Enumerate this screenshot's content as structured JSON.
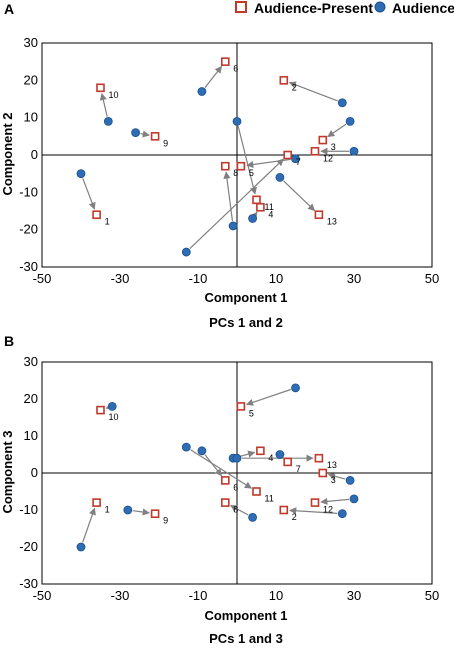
{
  "legend": {
    "present_label": "Audience-Present",
    "absent_label": "Audience-Absent",
    "present_color": "#c0392b",
    "absent_color": "#2e6db4"
  },
  "chart_data": [
    {
      "type": "scatter",
      "panel_label": "A",
      "caption": "PCs 1 and 2",
      "xlabel": "Component 1",
      "ylabel": "Component 2",
      "xlim": [
        -50,
        50
      ],
      "ylim": [
        -30,
        30
      ],
      "xticks": [
        -50,
        -30,
        -10,
        10,
        30,
        50
      ],
      "yticks": [
        -30,
        -20,
        -10,
        0,
        10,
        20,
        30
      ],
      "points": [
        {
          "id": "1",
          "absent": [
            -40,
            -5
          ],
          "present": [
            -36,
            -16
          ]
        },
        {
          "id": "2",
          "absent": [
            27,
            14
          ],
          "present": [
            12,
            20
          ]
        },
        {
          "id": "3",
          "absent": [
            29,
            9
          ],
          "present": [
            22,
            4
          ]
        },
        {
          "id": "4",
          "absent": [
            4,
            -17
          ],
          "present": [
            6,
            -14
          ]
        },
        {
          "id": "5",
          "absent": [
            15,
            -1
          ],
          "present": [
            1,
            -3
          ]
        },
        {
          "id": "6",
          "absent": [
            -9,
            17
          ],
          "present": [
            -3,
            25
          ]
        },
        {
          "id": "7",
          "absent": [
            -13,
            -26
          ],
          "present": [
            13,
            0
          ]
        },
        {
          "id": "8",
          "absent": [
            -1,
            -19
          ],
          "present": [
            -3,
            -3
          ]
        },
        {
          "id": "9",
          "absent": [
            -26,
            6
          ],
          "present": [
            -21,
            5
          ]
        },
        {
          "id": "10",
          "absent": [
            -33,
            9
          ],
          "present": [
            -35,
            18
          ]
        },
        {
          "id": "11",
          "absent": [
            0,
            9
          ],
          "present": [
            5,
            -12
          ]
        },
        {
          "id": "12",
          "absent": [
            30,
            1
          ],
          "present": [
            20,
            1
          ]
        },
        {
          "id": "13",
          "absent": [
            11,
            -6
          ],
          "present": [
            21,
            -16
          ]
        }
      ]
    },
    {
      "type": "scatter",
      "panel_label": "B",
      "caption": "PCs 1 and 3",
      "xlabel": "Component 1",
      "ylabel": "Component 3",
      "xlim": [
        -50,
        50
      ],
      "ylim": [
        -30,
        30
      ],
      "xticks": [
        -50,
        -30,
        -10,
        10,
        30,
        50
      ],
      "yticks": [
        -30,
        -20,
        -10,
        0,
        10,
        20,
        30
      ],
      "points": [
        {
          "id": "1",
          "absent": [
            -40,
            -20
          ],
          "present": [
            -36,
            -8
          ]
        },
        {
          "id": "2",
          "absent": [
            27,
            -11
          ],
          "present": [
            12,
            -10
          ]
        },
        {
          "id": "3",
          "absent": [
            29,
            -2
          ],
          "present": [
            22,
            0
          ]
        },
        {
          "id": "4",
          "absent": [
            -1,
            4
          ],
          "present": [
            6,
            6
          ]
        },
        {
          "id": "5",
          "absent": [
            15,
            23
          ],
          "present": [
            1,
            18
          ]
        },
        {
          "id": "6",
          "absent": [
            -9,
            6
          ],
          "present": [
            -3,
            -2
          ]
        },
        {
          "id": "7",
          "absent": [
            11,
            5
          ],
          "present": [
            13,
            3
          ]
        },
        {
          "id": "8",
          "absent": [
            4,
            -12
          ],
          "present": [
            -3,
            -8
          ]
        },
        {
          "id": "9",
          "absent": [
            -28,
            -10
          ],
          "present": [
            -21,
            -11
          ]
        },
        {
          "id": "10",
          "absent": [
            -32,
            18
          ],
          "present": [
            -35,
            17
          ]
        },
        {
          "id": "11",
          "absent": [
            -13,
            7
          ],
          "present": [
            5,
            -5
          ]
        },
        {
          "id": "12",
          "absent": [
            30,
            -7
          ],
          "present": [
            20,
            -8
          ]
        },
        {
          "id": "13",
          "absent": [
            0,
            4
          ],
          "present": [
            21,
            4
          ]
        }
      ]
    }
  ]
}
